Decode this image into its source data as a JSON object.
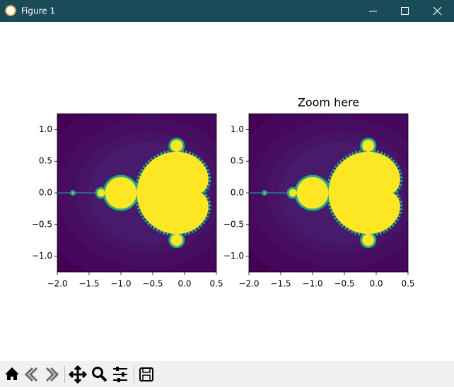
{
  "window": {
    "title": "Figure 1"
  },
  "chart_data": [
    {
      "type": "image",
      "xlim": [
        -2,
        0.5
      ],
      "ylim": [
        -1.25,
        1.25
      ],
      "xticks": [
        {
          "value": -2,
          "label": "−2.0"
        },
        {
          "value": -1.5,
          "label": "−1.5"
        },
        {
          "value": -1,
          "label": "−1.0"
        },
        {
          "value": -0.5,
          "label": "−0.5"
        },
        {
          "value": 0,
          "label": "0.0"
        },
        {
          "value": 0.5,
          "label": "0.5"
        }
      ],
      "yticks": [
        {
          "value": -1,
          "label": "−1.0"
        },
        {
          "value": -0.5,
          "label": "−0.5"
        },
        {
          "value": 0,
          "label": "0.0"
        },
        {
          "value": 0.5,
          "label": "0.5"
        },
        {
          "value": 1,
          "label": "1.0"
        }
      ]
    },
    {
      "type": "image",
      "title": "Zoom here",
      "xlim": [
        -2,
        0.5
      ],
      "ylim": [
        -1.25,
        1.25
      ],
      "xticks": [
        {
          "value": -2,
          "label": "−2.0"
        },
        {
          "value": -1.5,
          "label": "−1.5"
        },
        {
          "value": -1,
          "label": "−1.0"
        },
        {
          "value": -0.5,
          "label": "−0.5"
        },
        {
          "value": 0,
          "label": "0.0"
        },
        {
          "value": 0.5,
          "label": "0.5"
        }
      ],
      "yticks": [
        {
          "value": -1,
          "label": "−1.0"
        },
        {
          "value": -0.5,
          "label": "−0.5"
        },
        {
          "value": 0,
          "label": "0.0"
        },
        {
          "value": 0.5,
          "label": "0.5"
        },
        {
          "value": 1,
          "label": "1.0"
        }
      ]
    }
  ]
}
